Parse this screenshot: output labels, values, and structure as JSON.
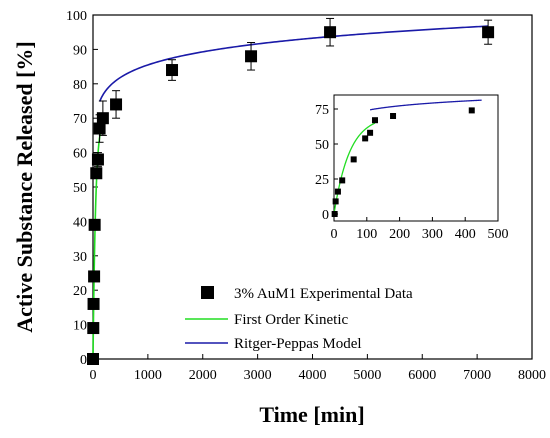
{
  "chart_data": [
    {
      "type": "scatter",
      "role": "main",
      "xlabel": "Time [min]",
      "ylabel": "Active Substance Released [%]",
      "xlim": [
        0,
        8000
      ],
      "ylim": [
        0,
        100
      ],
      "xticks": [
        0,
        1000,
        2000,
        3000,
        4000,
        5000,
        6000,
        7000,
        8000
      ],
      "yticks": [
        0,
        10,
        20,
        30,
        40,
        50,
        60,
        70,
        80,
        90,
        100
      ],
      "legend_position": "bottom-center",
      "series": [
        {
          "name": "3% AuM1 Experimental Data",
          "kind": "markers",
          "color": "#000000",
          "points": [
            {
              "x": 0,
              "y": 0,
              "err": 0
            },
            {
              "x": 5,
              "y": 9,
              "err": 0.5
            },
            {
              "x": 10,
              "y": 16,
              "err": 1
            },
            {
              "x": 20,
              "y": 24,
              "err": 1
            },
            {
              "x": 30,
              "y": 39,
              "err": 1.5
            },
            {
              "x": 60,
              "y": 54,
              "err": 1.5
            },
            {
              "x": 90,
              "y": 58,
              "err": 2
            },
            {
              "x": 120,
              "y": 67,
              "err": 4
            },
            {
              "x": 180,
              "y": 70,
              "err": 5
            },
            {
              "x": 420,
              "y": 74,
              "err": 4
            },
            {
              "x": 1440,
              "y": 84,
              "err": 3
            },
            {
              "x": 2880,
              "y": 88,
              "err": 4
            },
            {
              "x": 4320,
              "y": 95,
              "err": 4
            },
            {
              "x": 7200,
              "y": 95,
              "err": 3.5
            }
          ]
        },
        {
          "name": "First Order Kinetic",
          "kind": "line",
          "color": "#22dd22",
          "model": {
            "ymax": 70,
            "k": 0.021,
            "xmax": 200
          }
        },
        {
          "name": "Ritger-Peppas Model",
          "kind": "line",
          "color": "#1a1aa8",
          "model": {
            "a": 55.4,
            "n": 0.0628,
            "xmin": 120,
            "xmax": 7200
          }
        }
      ]
    },
    {
      "type": "scatter",
      "role": "inset",
      "xlim": [
        0,
        500
      ],
      "ylim": [
        -5,
        85
      ],
      "xticks": [
        0,
        100,
        200,
        300,
        400,
        500
      ],
      "yticks": [
        0,
        25,
        50,
        75
      ],
      "series": [
        {
          "name": "3% AuM1 Experimental Data",
          "kind": "markers",
          "color": "#000000",
          "points": [
            {
              "x": 2,
              "y": 0
            },
            {
              "x": 5,
              "y": 9
            },
            {
              "x": 12,
              "y": 16
            },
            {
              "x": 25,
              "y": 24
            },
            {
              "x": 60,
              "y": 39
            },
            {
              "x": 95,
              "y": 54
            },
            {
              "x": 110,
              "y": 58
            },
            {
              "x": 125,
              "y": 67
            },
            {
              "x": 180,
              "y": 70
            },
            {
              "x": 420,
              "y": 74
            }
          ]
        },
        {
          "name": "First Order Kinetic",
          "kind": "line",
          "color": "#22dd22",
          "model": {
            "ymax": 70,
            "k": 0.021,
            "xmax": 125
          }
        },
        {
          "name": "Ritger-Peppas Model",
          "kind": "line",
          "color": "#1a1aa8",
          "model": {
            "a": 55.4,
            "n": 0.0628,
            "xmin": 110,
            "xmax": 450
          }
        }
      ]
    }
  ]
}
